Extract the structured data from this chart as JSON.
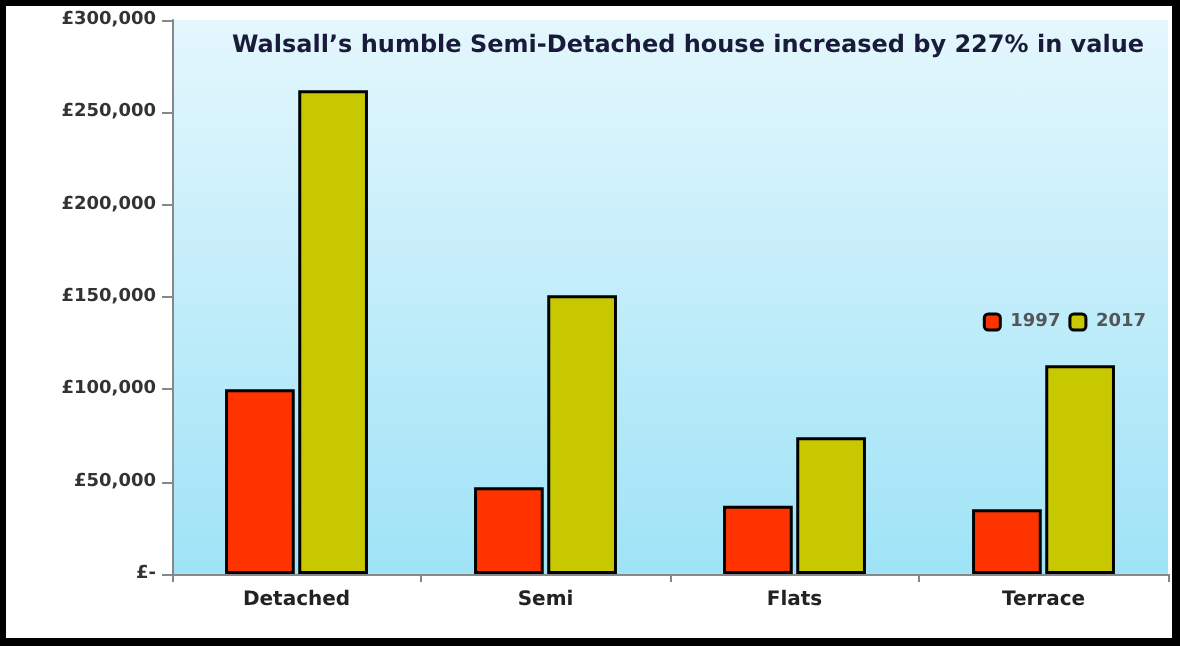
{
  "chart_data": {
    "type": "bar",
    "title": "Walsall’s humble Semi-Detached house increased by 227% in value",
    "categories": [
      "Detached",
      "Semi",
      "Flats",
      "Terrace"
    ],
    "series": [
      {
        "name": "1997",
        "color": "#ff3300",
        "values": [
          100000,
          47000,
          37000,
          35000
        ]
      },
      {
        "name": "2017",
        "color": "#c8c800",
        "values": [
          262000,
          151000,
          74000,
          113000
        ]
      }
    ],
    "ylim": [
      0,
      300000
    ],
    "yticks": [
      {
        "value": 0,
        "label": "£-"
      },
      {
        "value": 50000,
        "label": "£50,000"
      },
      {
        "value": 100000,
        "label": "£100,000"
      },
      {
        "value": 150000,
        "label": "£150,000"
      },
      {
        "value": 200000,
        "label": "£200,000"
      },
      {
        "value": 250000,
        "label": "£250,000"
      },
      {
        "value": 300000,
        "label": "£300,000"
      }
    ],
    "grid": false,
    "legend": "right"
  }
}
